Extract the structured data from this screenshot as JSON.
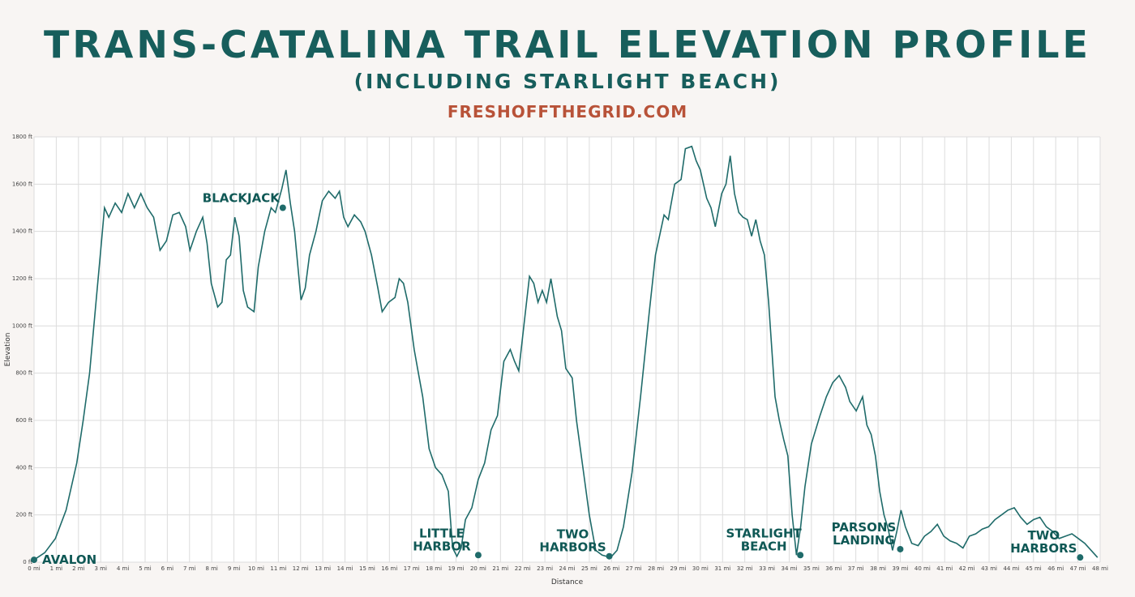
{
  "header": {
    "title": "TRANS-CATALINA TRAIL ELEVATION PROFILE",
    "subtitle": "(INCLUDING STARLIGHT BEACH)",
    "site": "FRESHOFFTHEGRID.COM"
  },
  "colors": {
    "line": "#1f6b6a",
    "title": "#175e5c",
    "site": "#b85238",
    "grid": "#dcdcdc",
    "background": "#f8f5f3",
    "plot_background": "#ffffff"
  },
  "chart_data": {
    "type": "line",
    "title": "TRANS-CATALINA TRAIL ELEVATION PROFILE",
    "xlabel": "Distance",
    "ylabel": "Elevation",
    "xlim": [
      0,
      48
    ],
    "ylim": [
      0,
      1800
    ],
    "x_unit": "mi",
    "y_unit": "ft",
    "grid": true,
    "x_ticks": [
      "0 mi",
      "1 mi",
      "2 mi",
      "3 mi",
      "4 mi",
      "5 mi",
      "6 mi",
      "7 mi",
      "8 mi",
      "9 mi",
      "10 mi",
      "11 mi",
      "12 mi",
      "13 mi",
      "14 mi",
      "15 mi",
      "16 mi",
      "17 mi",
      "18 mi",
      "19 mi",
      "20 mi",
      "21 mi",
      "22 mi",
      "23 mi",
      "24 mi",
      "25 mi",
      "26 mi",
      "27 mi",
      "28 mi",
      "29 mi",
      "30 mi",
      "31 mi",
      "32 mi",
      "33 mi",
      "34 mi",
      "35 mi",
      "36 mi",
      "37 mi",
      "38 mi",
      "39 mi",
      "40 mi",
      "41 mi",
      "42 mi",
      "43 mi",
      "44 mi",
      "45 mi",
      "46 mi",
      "47 mi",
      "48 mi"
    ],
    "y_ticks": [
      "0 ft",
      "200 ft",
      "400 ft",
      "600 ft",
      "800 ft",
      "1000 ft",
      "1200 ft",
      "1400 ft",
      "1600 ft",
      "1800 ft"
    ],
    "series": [
      {
        "values": [
          [
            0,
            10
          ],
          [
            0.5,
            40
          ],
          [
            1,
            100
          ],
          [
            1.5,
            220
          ],
          [
            2,
            420
          ],
          [
            2.3,
            600
          ],
          [
            2.6,
            800
          ],
          [
            2.9,
            1100
          ],
          [
            3.1,
            1300
          ],
          [
            3.3,
            1500
          ],
          [
            3.5,
            1460
          ],
          [
            3.8,
            1520
          ],
          [
            4.1,
            1480
          ],
          [
            4.4,
            1560
          ],
          [
            4.7,
            1500
          ],
          [
            5.0,
            1560
          ],
          [
            5.3,
            1500
          ],
          [
            5.6,
            1460
          ],
          [
            5.9,
            1320
          ],
          [
            6.2,
            1360
          ],
          [
            6.5,
            1470
          ],
          [
            6.8,
            1480
          ],
          [
            7.1,
            1420
          ],
          [
            7.3,
            1320
          ],
          [
            7.6,
            1400
          ],
          [
            7.9,
            1460
          ],
          [
            8.1,
            1350
          ],
          [
            8.3,
            1180
          ],
          [
            8.6,
            1080
          ],
          [
            8.8,
            1100
          ],
          [
            9.0,
            1280
          ],
          [
            9.2,
            1300
          ],
          [
            9.4,
            1460
          ],
          [
            9.6,
            1380
          ],
          [
            9.8,
            1150
          ],
          [
            10.0,
            1080
          ],
          [
            10.3,
            1060
          ],
          [
            10.5,
            1250
          ],
          [
            10.8,
            1400
          ],
          [
            11.1,
            1500
          ],
          [
            11.3,
            1480
          ],
          [
            11.6,
            1580
          ],
          [
            11.8,
            1660
          ],
          [
            12.0,
            1520
          ],
          [
            12.2,
            1400
          ],
          [
            12.5,
            1110
          ],
          [
            12.7,
            1160
          ],
          [
            12.9,
            1300
          ],
          [
            13.2,
            1400
          ],
          [
            13.5,
            1530
          ],
          [
            13.8,
            1570
          ],
          [
            14.1,
            1540
          ],
          [
            14.3,
            1570
          ],
          [
            14.5,
            1460
          ],
          [
            14.7,
            1420
          ],
          [
            15.0,
            1470
          ],
          [
            15.3,
            1440
          ],
          [
            15.5,
            1400
          ],
          [
            15.8,
            1300
          ],
          [
            16.1,
            1160
          ],
          [
            16.3,
            1060
          ],
          [
            16.6,
            1100
          ],
          [
            16.9,
            1120
          ],
          [
            17.1,
            1200
          ],
          [
            17.3,
            1180
          ],
          [
            17.5,
            1100
          ],
          [
            17.8,
            900
          ],
          [
            18.0,
            800
          ],
          [
            18.2,
            700
          ],
          [
            18.5,
            480
          ],
          [
            18.8,
            400
          ],
          [
            19.1,
            370
          ],
          [
            19.4,
            300
          ],
          [
            19.6,
            60
          ],
          [
            19.8,
            25
          ],
          [
            20.0,
            60
          ],
          [
            20.2,
            180
          ],
          [
            20.5,
            230
          ],
          [
            20.8,
            350
          ],
          [
            21.1,
            420
          ],
          [
            21.4,
            560
          ],
          [
            21.7,
            620
          ],
          [
            22.0,
            850
          ],
          [
            22.3,
            900
          ],
          [
            22.5,
            850
          ],
          [
            22.7,
            810
          ],
          [
            23.0,
            1050
          ],
          [
            23.2,
            1210
          ],
          [
            23.4,
            1180
          ],
          [
            23.6,
            1100
          ],
          [
            23.8,
            1150
          ],
          [
            24.0,
            1100
          ],
          [
            24.2,
            1200
          ],
          [
            24.5,
            1040
          ],
          [
            24.7,
            980
          ],
          [
            24.9,
            820
          ],
          [
            25.2,
            780
          ],
          [
            25.4,
            600
          ],
          [
            25.7,
            400
          ],
          [
            26.0,
            200
          ],
          [
            26.3,
            50
          ],
          [
            26.6,
            30
          ],
          [
            27.0,
            20
          ],
          [
            27.3,
            50
          ],
          [
            27.6,
            150
          ],
          [
            28.0,
            380
          ],
          [
            28.4,
            700
          ],
          [
            28.8,
            1050
          ],
          [
            29.1,
            1300
          ],
          [
            29.5,
            1470
          ],
          [
            29.7,
            1450
          ],
          [
            30.0,
            1600
          ],
          [
            30.3,
            1620
          ],
          [
            30.5,
            1750
          ],
          [
            30.8,
            1760
          ],
          [
            31.0,
            1700
          ],
          [
            31.2,
            1660
          ],
          [
            31.5,
            1540
          ],
          [
            31.7,
            1500
          ],
          [
            31.9,
            1420
          ],
          [
            32.2,
            1560
          ],
          [
            32.4,
            1600
          ],
          [
            32.6,
            1720
          ],
          [
            32.8,
            1560
          ],
          [
            33.0,
            1480
          ],
          [
            33.2,
            1460
          ],
          [
            33.4,
            1450
          ],
          [
            33.6,
            1380
          ],
          [
            33.8,
            1450
          ],
          [
            34.0,
            1360
          ],
          [
            34.2,
            1300
          ],
          [
            34.4,
            1100
          ],
          [
            34.7,
            700
          ],
          [
            34.9,
            600
          ],
          [
            35.1,
            520
          ],
          [
            35.3,
            450
          ],
          [
            35.5,
            200
          ],
          [
            35.7,
            30
          ],
          [
            35.9,
            150
          ],
          [
            36.1,
            320
          ],
          [
            36.4,
            500
          ],
          [
            36.8,
            620
          ],
          [
            37.1,
            700
          ],
          [
            37.4,
            760
          ],
          [
            37.7,
            790
          ],
          [
            38.0,
            740
          ],
          [
            38.2,
            680
          ],
          [
            38.5,
            640
          ],
          [
            38.8,
            700
          ],
          [
            39.0,
            580
          ],
          [
            39.2,
            540
          ],
          [
            39.4,
            450
          ],
          [
            39.6,
            300
          ],
          [
            39.8,
            200
          ],
          [
            40.0,
            140
          ],
          [
            40.2,
            50
          ],
          [
            40.4,
            130
          ],
          [
            40.6,
            220
          ],
          [
            40.8,
            150
          ],
          [
            41.1,
            80
          ],
          [
            41.4,
            70
          ],
          [
            41.7,
            110
          ],
          [
            42.0,
            130
          ],
          [
            42.3,
            160
          ],
          [
            42.6,
            110
          ],
          [
            42.9,
            90
          ],
          [
            43.2,
            80
          ],
          [
            43.5,
            60
          ],
          [
            43.8,
            110
          ],
          [
            44.1,
            120
          ],
          [
            44.4,
            140
          ],
          [
            44.7,
            150
          ],
          [
            45.0,
            180
          ],
          [
            45.3,
            200
          ],
          [
            45.6,
            220
          ],
          [
            45.9,
            230
          ],
          [
            46.2,
            190
          ],
          [
            46.5,
            160
          ],
          [
            46.8,
            180
          ],
          [
            47.1,
            190
          ],
          [
            47.4,
            150
          ],
          [
            47.7,
            130
          ],
          [
            48.0,
            100
          ],
          [
            48.3,
            110
          ],
          [
            48.6,
            120
          ],
          [
            48.9,
            100
          ],
          [
            49.2,
            80
          ],
          [
            49.5,
            50
          ],
          [
            49.8,
            20
          ]
        ]
      }
    ],
    "x_scale": 0.9615,
    "annotations": [
      {
        "label": "AVALON",
        "x": 0.0,
        "y": 10
      },
      {
        "label": "BLACKJACK",
        "x": 11.2,
        "y": 1500
      },
      {
        "label": "LITTLE HARBOR",
        "x": 20.0,
        "y": 30
      },
      {
        "label": "TWO HARBORS",
        "x": 25.9,
        "y": 25
      },
      {
        "label": "STARLIGHT BEACH",
        "x": 34.5,
        "y": 30
      },
      {
        "label": "PARSONS LANDING",
        "x": 39.0,
        "y": 55
      },
      {
        "label": "TWO HARBORS",
        "x": 47.1,
        "y": 20
      }
    ]
  }
}
